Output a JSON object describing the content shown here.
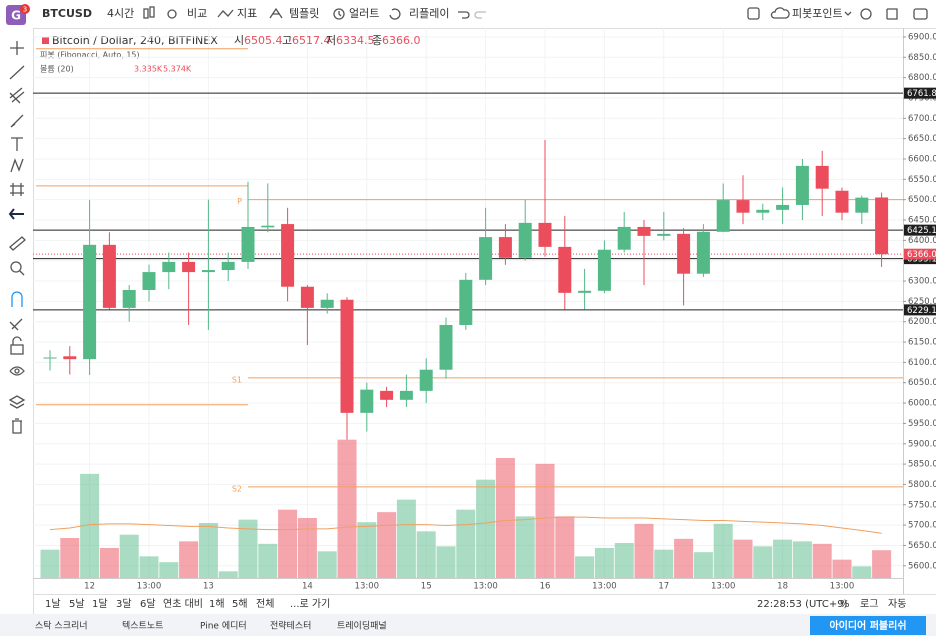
{
  "logo": {
    "letter": "G",
    "badge": "3"
  },
  "toolbar": {
    "symbol": "BTCUSD",
    "interval": "4시간",
    "items": [
      "비교",
      "지표",
      "템플릿",
      "얼러트",
      "리플레이"
    ],
    "pivot": "피봇포인트"
  },
  "chart_data": {
    "type": "candlestick",
    "title": "Bitcoin / Dollar, 240, BITFINEX",
    "legend": {
      "ohlc": [
        {
          "name": "시",
          "value": 6505.4
        },
        {
          "name": "고",
          "value": 6517.4
        },
        {
          "name": "저",
          "value": 6334.5
        },
        {
          "name": "종",
          "value": 6366,
          "label": "6366.0"
        }
      ],
      "pivot": "피봇 (Fibonacci, Auto, 15)",
      "volume_name": "볼륨 (20)",
      "volume_values": [
        {
          "value": 3.335,
          "label": "3.335K"
        },
        {
          "value": 5.374,
          "label": "5.374K"
        }
      ]
    },
    "up_color": "#53b987",
    "down_color": "#eb4d5c",
    "categories": [
      null,
      null,
      "12",
      null,
      null,
      "13:00",
      null,
      null,
      "13",
      null,
      null,
      null,
      null,
      "14",
      null,
      null,
      "13:00",
      null,
      null,
      "15",
      null,
      null,
      "13:00",
      null,
      null,
      "16",
      null,
      null,
      "13:00",
      null,
      null,
      "17",
      null,
      null,
      "13:00",
      null,
      null,
      "18",
      null,
      null,
      "13:00",
      null,
      null
    ],
    "candles": [
      {
        "open": 6110,
        "high": 6130,
        "low": 6080,
        "close": 6112
      },
      {
        "open": 6115,
        "high": 6140,
        "low": 6070,
        "close": 6108
      },
      {
        "open": 6108,
        "high": 6499,
        "low": 6069,
        "close": 6389
      },
      {
        "open": 6389,
        "high": 6420,
        "low": 6230,
        "close": 6234
      },
      {
        "open": 6234,
        "high": 6290,
        "low": 6200,
        "close": 6278
      },
      {
        "open": 6278,
        "high": 6340,
        "low": 6250,
        "close": 6322
      },
      {
        "open": 6322,
        "high": 6370,
        "low": 6280,
        "close": 6347
      },
      {
        "open": 6347,
        "high": 6370,
        "low": 6192,
        "close": 6322
      },
      {
        "open": 6322,
        "high": 6500,
        "low": 6180,
        "close": 6327
      },
      {
        "open": 6327,
        "high": 6370,
        "low": 6300,
        "close": 6347
      },
      {
        "open": 6347,
        "high": 6544,
        "low": 6330,
        "close": 6433
      },
      {
        "open": 6432,
        "high": 6540,
        "low": 6420,
        "close": 6436
      },
      {
        "open": 6440,
        "high": 6480,
        "low": 6250,
        "close": 6286
      },
      {
        "open": 6286,
        "high": 6290,
        "low": 6143,
        "close": 6234
      },
      {
        "open": 6234,
        "high": 6270,
        "low": 6220,
        "close": 6254
      },
      {
        "open": 6254,
        "high": 6260,
        "low": 5910,
        "close": 5976
      },
      {
        "open": 5976,
        "high": 6050,
        "low": 5930,
        "close": 6033
      },
      {
        "open": 6030,
        "high": 6040,
        "low": 5990,
        "close": 6008
      },
      {
        "open": 6008,
        "high": 6070,
        "low": 5990,
        "close": 6030
      },
      {
        "open": 6030,
        "high": 6110,
        "low": 6000,
        "close": 6082
      },
      {
        "open": 6082,
        "high": 6210,
        "low": 6060,
        "close": 6192
      },
      {
        "open": 6192,
        "high": 6320,
        "low": 6180,
        "close": 6303
      },
      {
        "open": 6303,
        "high": 6480,
        "low": 6290,
        "close": 6408
      },
      {
        "open": 6408,
        "high": 6440,
        "low": 6340,
        "close": 6357
      },
      {
        "open": 6357,
        "high": 6500,
        "low": 6350,
        "close": 6443
      },
      {
        "open": 6443,
        "high": 6647,
        "low": 6360,
        "close": 6384
      },
      {
        "open": 6384,
        "high": 6460,
        "low": 6230,
        "close": 6271
      },
      {
        "open": 6271,
        "high": 6330,
        "low": 6230,
        "close": 6276
      },
      {
        "open": 6276,
        "high": 6400,
        "low": 6270,
        "close": 6377
      },
      {
        "open": 6377,
        "high": 6470,
        "low": 6370,
        "close": 6433
      },
      {
        "open": 6433,
        "high": 6450,
        "low": 6290,
        "close": 6411
      },
      {
        "open": 6411,
        "high": 6470,
        "low": 6400,
        "close": 6416
      },
      {
        "open": 6416,
        "high": 6430,
        "low": 6240,
        "close": 6318
      },
      {
        "open": 6318,
        "high": 6440,
        "low": 6310,
        "close": 6421
      },
      {
        "open": 6421,
        "high": 6540,
        "low": 6420,
        "close": 6499
      },
      {
        "open": 6499,
        "high": 6560,
        "low": 6440,
        "close": 6468
      },
      {
        "open": 6468,
        "high": 6490,
        "low": 6450,
        "close": 6475
      },
      {
        "open": 6475,
        "high": 6530,
        "low": 6440,
        "close": 6487
      },
      {
        "open": 6487,
        "high": 6600,
        "low": 6450,
        "close": 6583
      },
      {
        "open": 6583,
        "high": 6620,
        "low": 6460,
        "close": 6527
      },
      {
        "open": 6522,
        "high": 6530,
        "low": 6450,
        "close": 6468
      },
      {
        "open": 6468,
        "high": 6510,
        "low": 6440,
        "close": 6505
      },
      {
        "open": 6505.4,
        "high": 6517.4,
        "low": 6334.5,
        "close": 6366
      }
    ],
    "volume": {
      "values": [
        3.4,
        4.8,
        12.5,
        3.6,
        5.2,
        2.6,
        1.9,
        4.4,
        6.6,
        0.8,
        7.0,
        4.1,
        8.2,
        7.2,
        3.2,
        16.6,
        6.7,
        7.9,
        9.4,
        5.6,
        3.8,
        8.2,
        11.8,
        14.4,
        7.4,
        13.7,
        7.4,
        2.6,
        3.6,
        4.2,
        6.5,
        3.4,
        4.7,
        3.1,
        6.5,
        4.6,
        3.8,
        4.6,
        4.4,
        4.1,
        2.2,
        1.4,
        3.335
      ],
      "ma": [
        5.8,
        6.0,
        6.4,
        6.5,
        6.5,
        6.4,
        6.3,
        6.2,
        6.2,
        6.0,
        5.9,
        5.8,
        5.8,
        5.9,
        5.9,
        6.1,
        6.2,
        6.3,
        6.4,
        6.4,
        6.3,
        6.4,
        6.6,
        6.9,
        7.0,
        7.2,
        7.3,
        7.3,
        7.2,
        7.2,
        7.2,
        7.1,
        7.0,
        6.9,
        6.9,
        6.8,
        6.7,
        6.6,
        6.5,
        6.3,
        6.0,
        5.7,
        5.374
      ],
      "ylim": [
        0,
        66
      ],
      "ma_color": "#f0a060"
    },
    "pivots": [
      {
        "label": "P",
        "value": 6500
      },
      {
        "label": "S1",
        "value": 6062
      },
      {
        "label": "S2",
        "value": 5794
      }
    ],
    "previous_pivots": [
      6871,
      6534,
      5996
    ],
    "pivot_color": "#f0a060",
    "hlines": [
      6761.8,
      6425.1,
      6355.1,
      6229.1
    ],
    "current_price": {
      "value": 6366,
      "label": "6366.0"
    },
    "ylim": [
      5570,
      6922
    ],
    "yticks": [
      {
        "value": 5600,
        "label": "5600.0"
      },
      {
        "value": 5650,
        "label": "5650.0"
      },
      {
        "value": 5700,
        "label": "5700.0"
      },
      {
        "value": 5750,
        "label": "5750.0"
      },
      {
        "value": 5800,
        "label": "5800.0"
      },
      {
        "value": 5850,
        "label": "5850.0"
      },
      {
        "value": 5900,
        "label": "5900.0"
      },
      {
        "value": 5950,
        "label": "5950.0"
      },
      {
        "value": 6000,
        "label": "6000.0"
      },
      {
        "value": 6050,
        "label": "6050.0"
      },
      {
        "value": 6100,
        "label": "6100.0"
      },
      {
        "value": 6150,
        "label": "6150.0"
      },
      {
        "value": 6200,
        "label": "6200.0"
      },
      {
        "value": 6250,
        "label": "6250.0"
      },
      {
        "value": 6300,
        "label": "6300.0"
      },
      {
        "value": 6350,
        "label": "6350.0"
      },
      {
        "value": 6400,
        "label": "6400.0"
      },
      {
        "value": 6450,
        "label": "6450.0"
      },
      {
        "value": 6500,
        "label": "6500.0"
      },
      {
        "value": 6550,
        "label": "6550.0"
      },
      {
        "value": 6600,
        "label": "6600.0"
      },
      {
        "value": 6650,
        "label": "6650.0"
      },
      {
        "value": 6700,
        "label": "6700.0"
      },
      {
        "value": 6750,
        "label": "6750.0"
      },
      {
        "value": 6800,
        "label": "6800.0"
      },
      {
        "value": 6850,
        "label": "6850.0"
      },
      {
        "value": 6900,
        "label": "6900.0"
      }
    ],
    "grid": true
  },
  "bottom_bar": {
    "ranges": [
      "1날",
      "5날",
      "1달",
      "3달",
      "6달",
      "연초 대비",
      "1해",
      "5해",
      "전체"
    ],
    "goto": "...로 가기",
    "clock": "22:28:53 (UTC+9)",
    "options": [
      "%",
      "로그",
      "자동"
    ]
  },
  "tabs": [
    "스탁 스크리너",
    "텍스트노트",
    "Pine 에디터",
    "전략테스터",
    "트레이딩패널"
  ],
  "publish": "아이디어 퍼블리쉬"
}
